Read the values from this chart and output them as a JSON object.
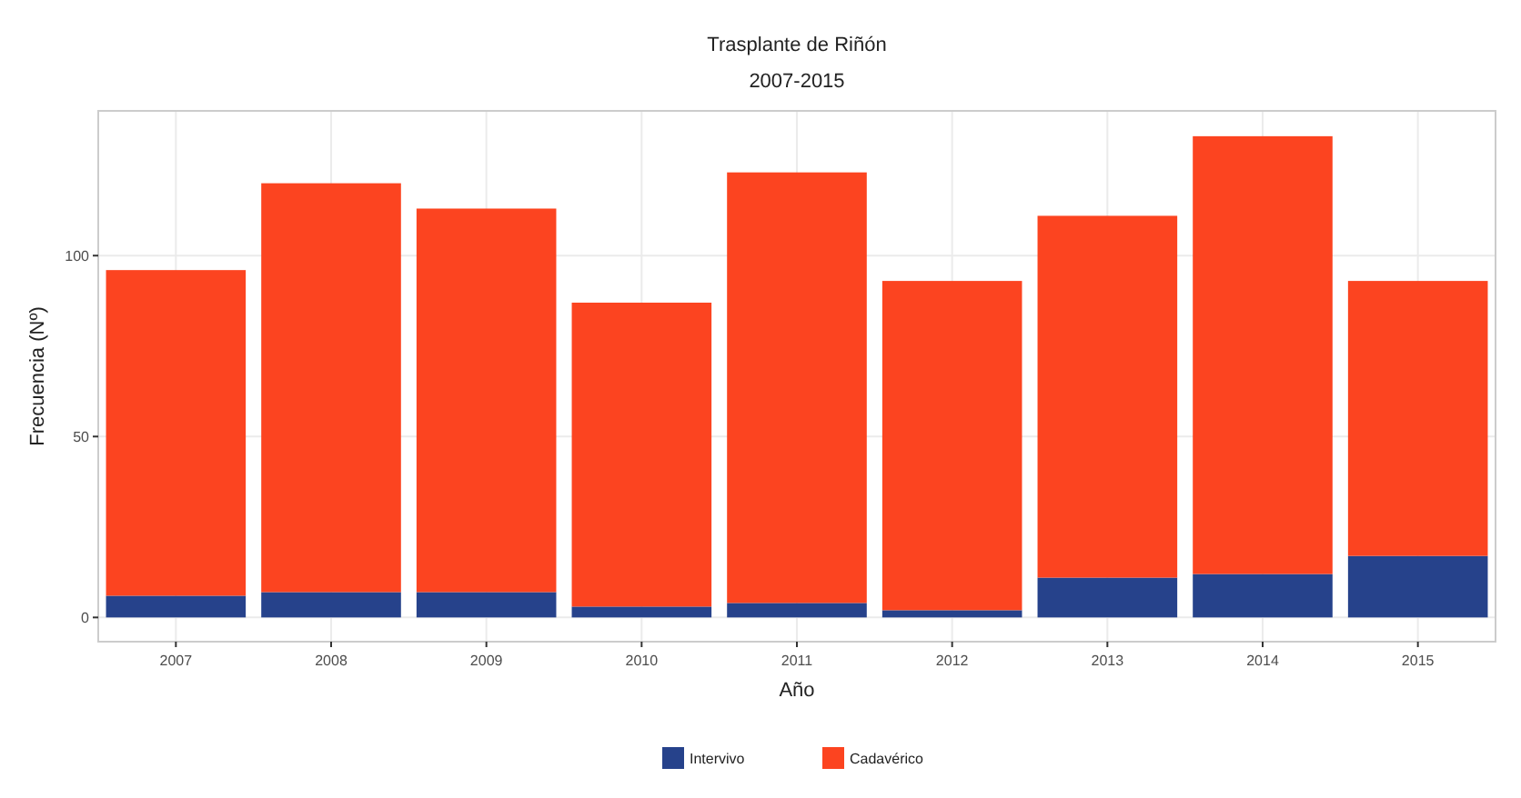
{
  "chart_data": {
    "type": "bar",
    "title": "Trasplante de Riñón",
    "subtitle": "2007-2015",
    "xlabel": "Año",
    "ylabel": "Frecuencia (Nº)",
    "categories": [
      "2007",
      "2008",
      "2009",
      "2010",
      "2011",
      "2012",
      "2013",
      "2014",
      "2015"
    ],
    "stacked": true,
    "series": [
      {
        "name": "Intervivo",
        "color": "#26428b",
        "values": [
          6,
          7,
          7,
          3,
          4,
          2,
          11,
          12,
          17
        ]
      },
      {
        "name": "Cadavérico",
        "color": "#fc4420",
        "values": [
          90,
          113,
          106,
          84,
          119,
          91,
          100,
          121,
          76
        ]
      }
    ],
    "ylim": [
      -6.7,
      140
    ],
    "yticks": [
      0,
      50,
      100
    ],
    "grid": true,
    "legend": "bottom"
  }
}
